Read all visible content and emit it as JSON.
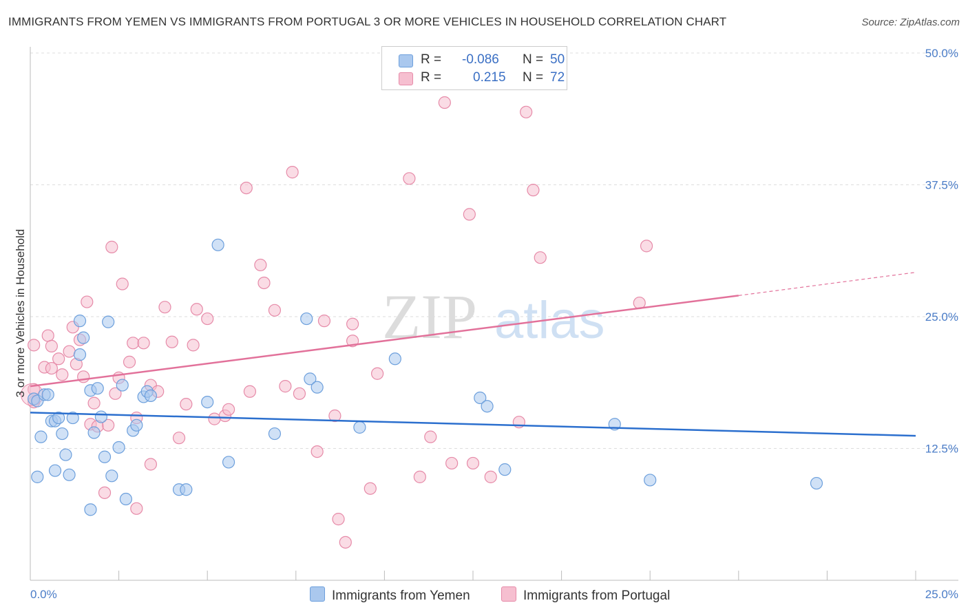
{
  "header": {
    "title": "IMMIGRANTS FROM YEMEN VS IMMIGRANTS FROM PORTUGAL 3 OR MORE VEHICLES IN HOUSEHOLD CORRELATION CHART",
    "source": "Source: ZipAtlas.com"
  },
  "legend": {
    "r_label": "R =",
    "n_label": "N =",
    "yemen": {
      "r": "-0.086",
      "n": "50"
    },
    "portugal": {
      "r": "0.215",
      "n": "72"
    }
  },
  "colors": {
    "yemen_fill": "#aac8ee",
    "yemen_stroke": "#6c9fdc",
    "yemen_line": "#2b6fce",
    "portugal_fill": "#f6bfd0",
    "portugal_stroke": "#e68aa8",
    "portugal_line": "#e2719a",
    "tick": "#4a7cc7"
  },
  "chart_data": {
    "type": "scatter",
    "title": "IMMIGRANTS FROM YEMEN VS IMMIGRANTS FROM PORTUGAL 3 OR MORE VEHICLES IN HOUSEHOLD CORRELATION CHART",
    "xlabel": "",
    "ylabel": "3 or more Vehicles in Household",
    "xlim": [
      0,
      25
    ],
    "ylim": [
      0,
      50
    ],
    "x_tick_labels": [
      "0.0%",
      "25.0%"
    ],
    "y_ticks": [
      {
        "value": 12.5,
        "label": "12.5%"
      },
      {
        "value": 25.0,
        "label": "25.0%"
      },
      {
        "value": 37.5,
        "label": "37.5%"
      },
      {
        "value": 50.0,
        "label": "50.0%"
      }
    ],
    "watermark": {
      "zip": "ZIP",
      "atlas": "atlas"
    },
    "series": [
      {
        "name": "Immigrants from Yemen",
        "trend": {
          "x": [
            0,
            25
          ],
          "y": [
            15.9,
            13.7
          ]
        },
        "trend_dashed": null,
        "points": [
          [
            0.1,
            17.2
          ],
          [
            0.2,
            17.0
          ],
          [
            0.4,
            17.6
          ],
          [
            0.5,
            17.6
          ],
          [
            0.6,
            15.1
          ],
          [
            0.7,
            15.1
          ],
          [
            0.8,
            15.4
          ],
          [
            0.3,
            13.6
          ],
          [
            0.9,
            13.9
          ],
          [
            1.0,
            11.9
          ],
          [
            0.2,
            9.8
          ],
          [
            0.7,
            10.4
          ],
          [
            1.1,
            10.0
          ],
          [
            1.2,
            15.4
          ],
          [
            1.4,
            21.4
          ],
          [
            1.4,
            24.6
          ],
          [
            1.5,
            23.0
          ],
          [
            1.7,
            6.7
          ],
          [
            1.7,
            18.0
          ],
          [
            1.8,
            14.0
          ],
          [
            1.9,
            18.2
          ],
          [
            2.0,
            15.5
          ],
          [
            2.1,
            11.7
          ],
          [
            2.2,
            24.5
          ],
          [
            2.3,
            9.9
          ],
          [
            2.5,
            12.6
          ],
          [
            2.6,
            18.5
          ],
          [
            2.7,
            7.7
          ],
          [
            2.9,
            14.2
          ],
          [
            3.0,
            14.7
          ],
          [
            3.2,
            17.4
          ],
          [
            3.3,
            17.9
          ],
          [
            3.4,
            17.5
          ],
          [
            4.2,
            8.6
          ],
          [
            4.4,
            8.6
          ],
          [
            5.0,
            16.9
          ],
          [
            5.3,
            31.8
          ],
          [
            5.6,
            11.2
          ],
          [
            6.9,
            13.9
          ],
          [
            7.8,
            24.8
          ],
          [
            7.9,
            19.1
          ],
          [
            8.1,
            18.3
          ],
          [
            9.3,
            14.5
          ],
          [
            10.3,
            21.0
          ],
          [
            12.7,
            17.3
          ],
          [
            12.9,
            16.5
          ],
          [
            13.4,
            10.5
          ],
          [
            16.5,
            14.8
          ],
          [
            17.5,
            9.5
          ],
          [
            22.2,
            9.2
          ]
        ]
      },
      {
        "name": "Immigrants from Portugal",
        "trend": {
          "x": [
            0,
            20.0
          ],
          "y": [
            18.4,
            27.0
          ]
        },
        "trend_dashed": {
          "x": [
            20.0,
            25.0
          ],
          "y": [
            27.0,
            29.2
          ]
        },
        "points": [
          [
            0.1,
            22.3
          ],
          [
            0.1,
            18.1
          ],
          [
            0.1,
            16.9
          ],
          [
            0.4,
            20.2
          ],
          [
            0.5,
            23.2
          ],
          [
            0.6,
            20.1
          ],
          [
            0.6,
            22.2
          ],
          [
            0.8,
            21.0
          ],
          [
            0.9,
            19.5
          ],
          [
            1.1,
            21.7
          ],
          [
            1.2,
            24.0
          ],
          [
            1.3,
            20.5
          ],
          [
            1.4,
            22.8
          ],
          [
            1.5,
            19.3
          ],
          [
            1.6,
            26.4
          ],
          [
            1.7,
            14.8
          ],
          [
            1.8,
            16.8
          ],
          [
            1.9,
            14.6
          ],
          [
            2.1,
            8.3
          ],
          [
            2.2,
            14.7
          ],
          [
            2.3,
            31.6
          ],
          [
            2.4,
            17.7
          ],
          [
            2.5,
            19.2
          ],
          [
            2.6,
            28.1
          ],
          [
            2.8,
            20.7
          ],
          [
            2.9,
            22.5
          ],
          [
            3.0,
            15.4
          ],
          [
            3.0,
            6.8
          ],
          [
            3.2,
            22.5
          ],
          [
            3.4,
            11.0
          ],
          [
            3.4,
            18.5
          ],
          [
            3.6,
            17.9
          ],
          [
            3.8,
            25.9
          ],
          [
            4.0,
            22.6
          ],
          [
            4.2,
            13.5
          ],
          [
            4.4,
            16.7
          ],
          [
            4.6,
            22.3
          ],
          [
            4.7,
            25.7
          ],
          [
            5.0,
            24.8
          ],
          [
            5.2,
            15.3
          ],
          [
            5.5,
            15.6
          ],
          [
            5.6,
            16.2
          ],
          [
            6.1,
            37.2
          ],
          [
            6.2,
            17.9
          ],
          [
            6.5,
            29.9
          ],
          [
            6.6,
            28.2
          ],
          [
            6.9,
            25.6
          ],
          [
            7.2,
            18.4
          ],
          [
            7.4,
            38.7
          ],
          [
            7.6,
            17.7
          ],
          [
            8.1,
            12.2
          ],
          [
            8.3,
            24.6
          ],
          [
            8.6,
            15.6
          ],
          [
            8.7,
            5.8
          ],
          [
            8.9,
            3.6
          ],
          [
            9.1,
            22.7
          ],
          [
            9.1,
            24.3
          ],
          [
            9.6,
            8.7
          ],
          [
            9.8,
            19.6
          ],
          [
            10.7,
            38.1
          ],
          [
            11.0,
            9.8
          ],
          [
            11.3,
            13.6
          ],
          [
            11.7,
            45.3
          ],
          [
            11.9,
            11.1
          ],
          [
            12.4,
            34.7
          ],
          [
            12.5,
            11.1
          ],
          [
            13.0,
            9.8
          ],
          [
            13.8,
            15.0
          ],
          [
            14.0,
            44.4
          ],
          [
            14.2,
            37.0
          ],
          [
            14.4,
            30.6
          ],
          [
            17.2,
            26.3
          ]
        ]
      }
    ],
    "extra_portugal_point": [
      17.4,
      31.7
    ]
  },
  "bottom_legend": {
    "yemen_label": "Immigrants from Yemen",
    "portugal_label": "Immigrants from Portugal"
  }
}
